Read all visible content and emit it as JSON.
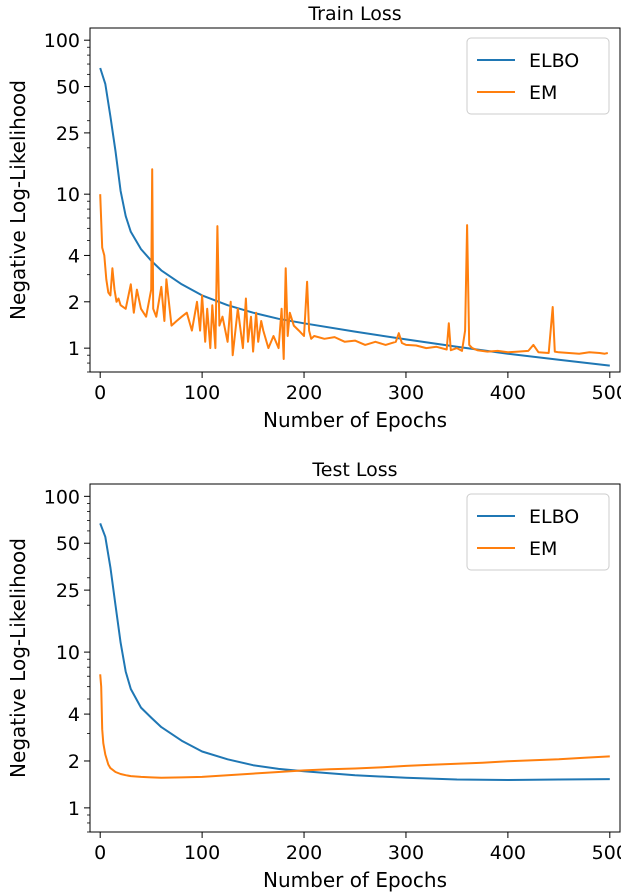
{
  "chart_data": [
    {
      "type": "line",
      "title": "Train Loss",
      "xlabel": "Number of Epochs",
      "ylabel": "Negative Log-Likelihood",
      "xlim": [
        -10,
        510
      ],
      "ylim": [
        0.7,
        120
      ],
      "yscale": "log",
      "xticks": [
        0,
        100,
        200,
        300,
        400,
        500
      ],
      "yticks": [
        1,
        2,
        4,
        10,
        25,
        50,
        100
      ],
      "legend": "top-right",
      "grid": false,
      "series": [
        {
          "name": "ELBO",
          "color": "#1f77b4",
          "x": [
            0,
            5,
            10,
            15,
            20,
            25,
            30,
            40,
            50,
            60,
            80,
            100,
            125,
            150,
            175,
            200,
            250,
            300,
            350,
            400,
            450,
            500
          ],
          "y": [
            66,
            52,
            32,
            19,
            10.5,
            7.2,
            5.7,
            4.4,
            3.7,
            3.2,
            2.6,
            2.2,
            1.9,
            1.7,
            1.55,
            1.45,
            1.28,
            1.14,
            1.02,
            0.92,
            0.84,
            0.77
          ]
        },
        {
          "name": "EM",
          "color": "#ff7f0e",
          "x": [
            0,
            2,
            4,
            6,
            8,
            10,
            12,
            14,
            16,
            18,
            20,
            25,
            30,
            33,
            36,
            40,
            45,
            50,
            51,
            52,
            55,
            60,
            63,
            65,
            70,
            75,
            80,
            85,
            90,
            95,
            98,
            100,
            103,
            105,
            108,
            110,
            113,
            115,
            117,
            120,
            125,
            128,
            130,
            135,
            140,
            143,
            145,
            148,
            150,
            153,
            155,
            158,
            160,
            165,
            170,
            175,
            178,
            180,
            182,
            184,
            186,
            190,
            195,
            200,
            203,
            205,
            207,
            210,
            220,
            230,
            240,
            250,
            260,
            270,
            280,
            290,
            293,
            296,
            300,
            310,
            320,
            330,
            340,
            342,
            344,
            350,
            355,
            358,
            360,
            362,
            365,
            370,
            380,
            390,
            400,
            410,
            420,
            425,
            430,
            440,
            444,
            446,
            450,
            460,
            470,
            480,
            490,
            495,
            498
          ],
          "y": [
            10,
            4.5,
            4,
            2.8,
            2.3,
            2.2,
            3.3,
            2.4,
            2.0,
            2.1,
            1.9,
            1.8,
            2.6,
            1.7,
            2.4,
            1.8,
            1.6,
            2.4,
            14.5,
            1.8,
            1.6,
            2.5,
            1.5,
            2.8,
            1.4,
            1.5,
            1.6,
            1.7,
            1.3,
            2.0,
            1.3,
            2.2,
            1.1,
            1.8,
            1.0,
            1.9,
            1.0,
            6.2,
            1.4,
            1.6,
            1.1,
            2.0,
            0.9,
            1.8,
            1.0,
            2.1,
            1.1,
            1.6,
            0.95,
            1.7,
            1.1,
            1.5,
            1.3,
            1.0,
            1.2,
            1.0,
            1.8,
            0.85,
            3.3,
            1.2,
            1.7,
            1.4,
            1.3,
            1.2,
            2.7,
            1.3,
            1.15,
            1.2,
            1.15,
            1.18,
            1.1,
            1.12,
            1.05,
            1.1,
            1.05,
            1.1,
            1.25,
            1.08,
            1.05,
            1.04,
            1.0,
            1.02,
            0.98,
            1.45,
            0.97,
            1.0,
            0.96,
            1.3,
            6.3,
            1.05,
            1.0,
            0.97,
            0.95,
            0.96,
            0.94,
            0.95,
            0.96,
            1.05,
            0.94,
            0.93,
            1.85,
            0.95,
            0.94,
            0.93,
            0.92,
            0.94,
            0.93,
            0.92,
            0.93
          ]
        }
      ]
    },
    {
      "type": "line",
      "title": "Test Loss",
      "xlabel": "Number of Epochs",
      "ylabel": "Negative Log-Likelihood",
      "xlim": [
        -10,
        510
      ],
      "ylim": [
        0.7,
        120
      ],
      "yscale": "log",
      "xticks": [
        0,
        100,
        200,
        300,
        400,
        500
      ],
      "yticks": [
        1,
        2,
        4,
        10,
        25,
        50,
        100
      ],
      "legend": "top-right",
      "grid": false,
      "series": [
        {
          "name": "ELBO",
          "color": "#1f77b4",
          "x": [
            0,
            5,
            10,
            15,
            20,
            25,
            30,
            40,
            50,
            60,
            80,
            100,
            125,
            150,
            175,
            200,
            250,
            300,
            350,
            400,
            450,
            500
          ],
          "y": [
            67,
            55,
            35,
            20,
            11.5,
            7.5,
            5.8,
            4.4,
            3.8,
            3.3,
            2.7,
            2.3,
            2.05,
            1.88,
            1.78,
            1.72,
            1.62,
            1.56,
            1.52,
            1.51,
            1.52,
            1.53
          ]
        },
        {
          "name": "EM",
          "color": "#ff7f0e",
          "x": [
            0,
            1,
            2,
            3,
            5,
            8,
            10,
            15,
            20,
            25,
            30,
            40,
            50,
            60,
            80,
            100,
            125,
            150,
            175,
            200,
            225,
            250,
            275,
            300,
            325,
            350,
            375,
            400,
            425,
            450,
            475,
            500
          ],
          "y": [
            7.2,
            6.0,
            3.2,
            2.6,
            2.2,
            1.9,
            1.8,
            1.7,
            1.65,
            1.62,
            1.6,
            1.58,
            1.57,
            1.56,
            1.57,
            1.58,
            1.62,
            1.66,
            1.7,
            1.74,
            1.77,
            1.79,
            1.82,
            1.86,
            1.89,
            1.92,
            1.95,
            1.99,
            2.02,
            2.05,
            2.1,
            2.14
          ]
        }
      ]
    }
  ]
}
